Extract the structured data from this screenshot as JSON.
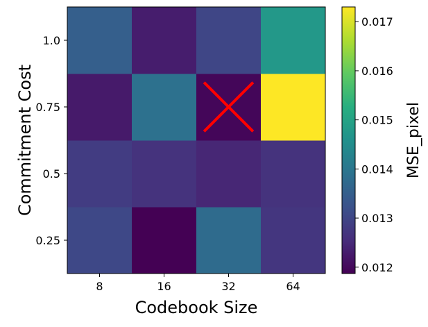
{
  "chart_data": {
    "type": "heatmap",
    "title": "",
    "xlabel": "Codebook Size",
    "ylabel": "Commitment Cost",
    "colorbar_label": "MSE_pixel",
    "colormap": "viridis",
    "x_categories": [
      "8",
      "16",
      "32",
      "64"
    ],
    "y_categories": [
      "0.25",
      "0.5",
      "0.75",
      "1.0"
    ],
    "values": [
      [
        0.01305,
        0.01187,
        0.01375,
        0.01272
      ],
      [
        0.01283,
        0.01265,
        0.01245,
        0.01265
      ],
      [
        0.01225,
        0.01388,
        0.01195,
        0.0173
      ],
      [
        0.0135,
        0.0123,
        0.013,
        0.01475
      ]
    ],
    "color_range": [
      0.01187,
      0.0173
    ],
    "colorbar_ticks": [
      "0.012",
      "0.013",
      "0.014",
      "0.015",
      "0.016",
      "0.017"
    ],
    "marker": {
      "symbol": "X",
      "color": "#ff0000",
      "x": "32",
      "y": "0.75"
    }
  }
}
